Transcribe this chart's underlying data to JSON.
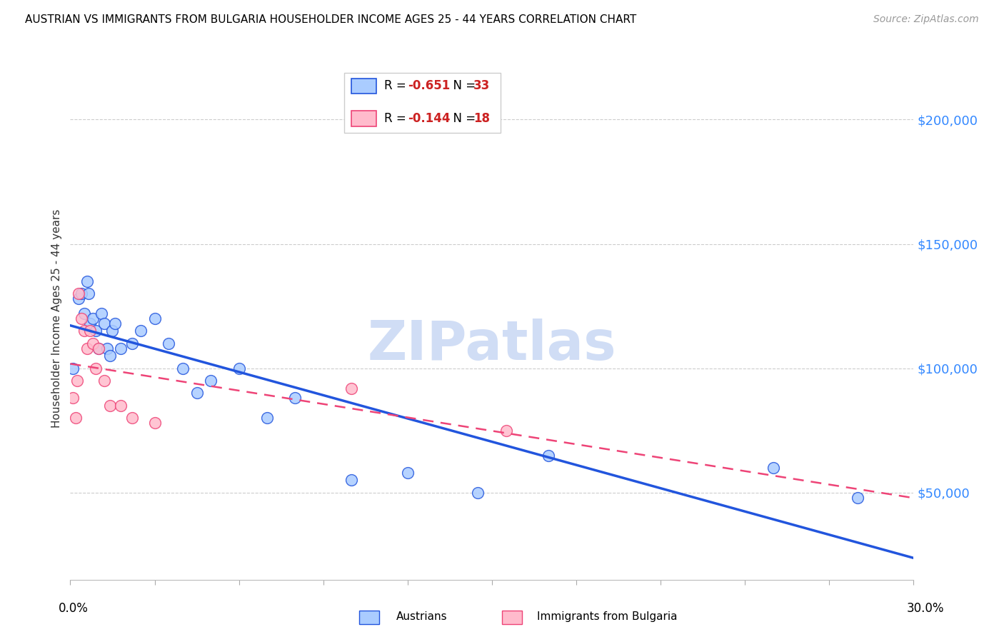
{
  "title": "AUSTRIAN VS IMMIGRANTS FROM BULGARIA HOUSEHOLDER INCOME AGES 25 - 44 YEARS CORRELATION CHART",
  "source": "Source: ZipAtlas.com",
  "ylabel": "Householder Income Ages 25 - 44 years",
  "ytick_values": [
    50000,
    100000,
    150000,
    200000
  ],
  "xmin": 0.0,
  "xmax": 0.3,
  "ymin": 15000,
  "ymax": 225000,
  "color_austrians": "#aaccff",
  "color_bulgaria": "#ffbbcc",
  "color_austrians_line": "#2255dd",
  "color_bulgaria_line": "#ee4477",
  "watermark": "ZIPatlas",
  "watermark_color": "#d0ddf5",
  "austrians_x": [
    0.0008,
    0.003,
    0.004,
    0.005,
    0.006,
    0.0065,
    0.007,
    0.008,
    0.009,
    0.01,
    0.011,
    0.012,
    0.013,
    0.014,
    0.015,
    0.016,
    0.018,
    0.022,
    0.025,
    0.03,
    0.035,
    0.04,
    0.045,
    0.05,
    0.06,
    0.07,
    0.08,
    0.1,
    0.12,
    0.145,
    0.17,
    0.25,
    0.28
  ],
  "austrians_y": [
    100000,
    128000,
    130000,
    122000,
    135000,
    130000,
    118000,
    120000,
    115000,
    108000,
    122000,
    118000,
    108000,
    105000,
    115000,
    118000,
    108000,
    110000,
    115000,
    120000,
    110000,
    100000,
    90000,
    95000,
    100000,
    80000,
    88000,
    55000,
    58000,
    50000,
    65000,
    60000,
    48000
  ],
  "bulgaria_x": [
    0.001,
    0.002,
    0.0025,
    0.003,
    0.004,
    0.005,
    0.006,
    0.007,
    0.008,
    0.009,
    0.01,
    0.012,
    0.014,
    0.018,
    0.022,
    0.03,
    0.1,
    0.155
  ],
  "bulgaria_y": [
    88000,
    80000,
    95000,
    130000,
    120000,
    115000,
    108000,
    115000,
    110000,
    100000,
    108000,
    95000,
    85000,
    85000,
    80000,
    78000,
    92000,
    75000
  ],
  "legend_label_austrians": "Austrians",
  "legend_label_bulgaria": "Immigrants from Bulgaria"
}
